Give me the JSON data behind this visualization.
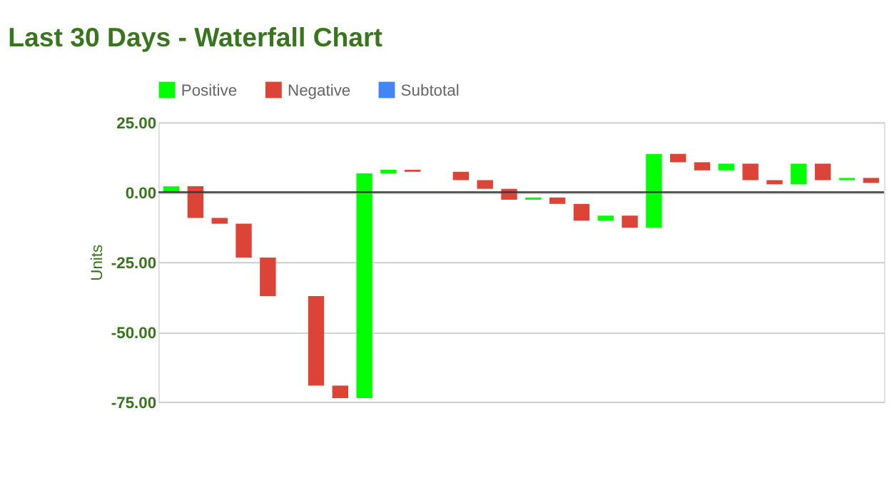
{
  "chart_data": {
    "type": "bar",
    "title": "Last 30 Days - Waterfall Chart",
    "ylabel": "Units",
    "categories": [
      null,
      null,
      null,
      null,
      null,
      null,
      null,
      null,
      null,
      null,
      null,
      null,
      null,
      null,
      null,
      null,
      null,
      null,
      null,
      null,
      null,
      null,
      null,
      null,
      null,
      null,
      null,
      null,
      null,
      null
    ],
    "series": [
      {
        "name": "Positive",
        "color": "#00ff00",
        "base": [
          0,
          null,
          null,
          null,
          null,
          null,
          null,
          null,
          -73.7,
          6.7,
          null,
          null,
          null,
          null,
          null,
          -2.7,
          null,
          null,
          -10.2,
          null,
          -12.7,
          null,
          null,
          7.8,
          null,
          null,
          2.8,
          null,
          4.3,
          null
        ],
        "values": [
          2.1,
          null,
          null,
          null,
          null,
          null,
          null,
          null,
          80.4,
          1.3,
          null,
          null,
          null,
          null,
          null,
          0.8,
          null,
          null,
          1.8,
          null,
          26.4,
          null,
          null,
          2.4,
          null,
          null,
          7.4,
          null,
          0.8,
          null
        ]
      },
      {
        "name": "Negative",
        "color": "#db4437",
        "base": [
          null,
          2.1,
          -9.2,
          -11.3,
          -23.4,
          null,
          -37.2,
          -69.2,
          null,
          null,
          8,
          null,
          7.3,
          4.3,
          1.2,
          null,
          -1.9,
          -4.2,
          null,
          -8.4,
          null,
          13.7,
          10.7,
          null,
          10.2,
          4.3,
          null,
          10.2,
          null,
          5.1
        ],
        "values": [
          null,
          -11.3,
          -2.1,
          -12.1,
          -13.8,
          null,
          -32,
          -4.5,
          null,
          null,
          -0.7,
          null,
          -3,
          -3.1,
          -3.9,
          null,
          -2.3,
          -6,
          null,
          -4.3,
          null,
          -3,
          -2.9,
          null,
          -5.9,
          -1.5,
          null,
          -5.9,
          null,
          -1.8
        ]
      },
      {
        "name": "Subtotal",
        "color": "#4285f4",
        "values": [
          null,
          null,
          null,
          null,
          null,
          null,
          null,
          null,
          null,
          null,
          null,
          null,
          null,
          null,
          null,
          null,
          null,
          null,
          null,
          null,
          null,
          null,
          null,
          null,
          null,
          null,
          null,
          null,
          null,
          null
        ]
      }
    ],
    "ylim": [
      -75,
      25
    ],
    "yticks": [
      {
        "value": -75,
        "label": "-75.00"
      },
      {
        "value": -50,
        "label": "-50.00"
      },
      {
        "value": -25,
        "label": "-25.00"
      },
      {
        "value": 0,
        "label": "0.00"
      },
      {
        "value": 25,
        "label": "25.00"
      }
    ],
    "ref_lines": [
      {
        "axis": "y",
        "value": 0,
        "color": "#333333"
      }
    ],
    "grid": "y",
    "legend": "top",
    "tick_labels": "y"
  }
}
